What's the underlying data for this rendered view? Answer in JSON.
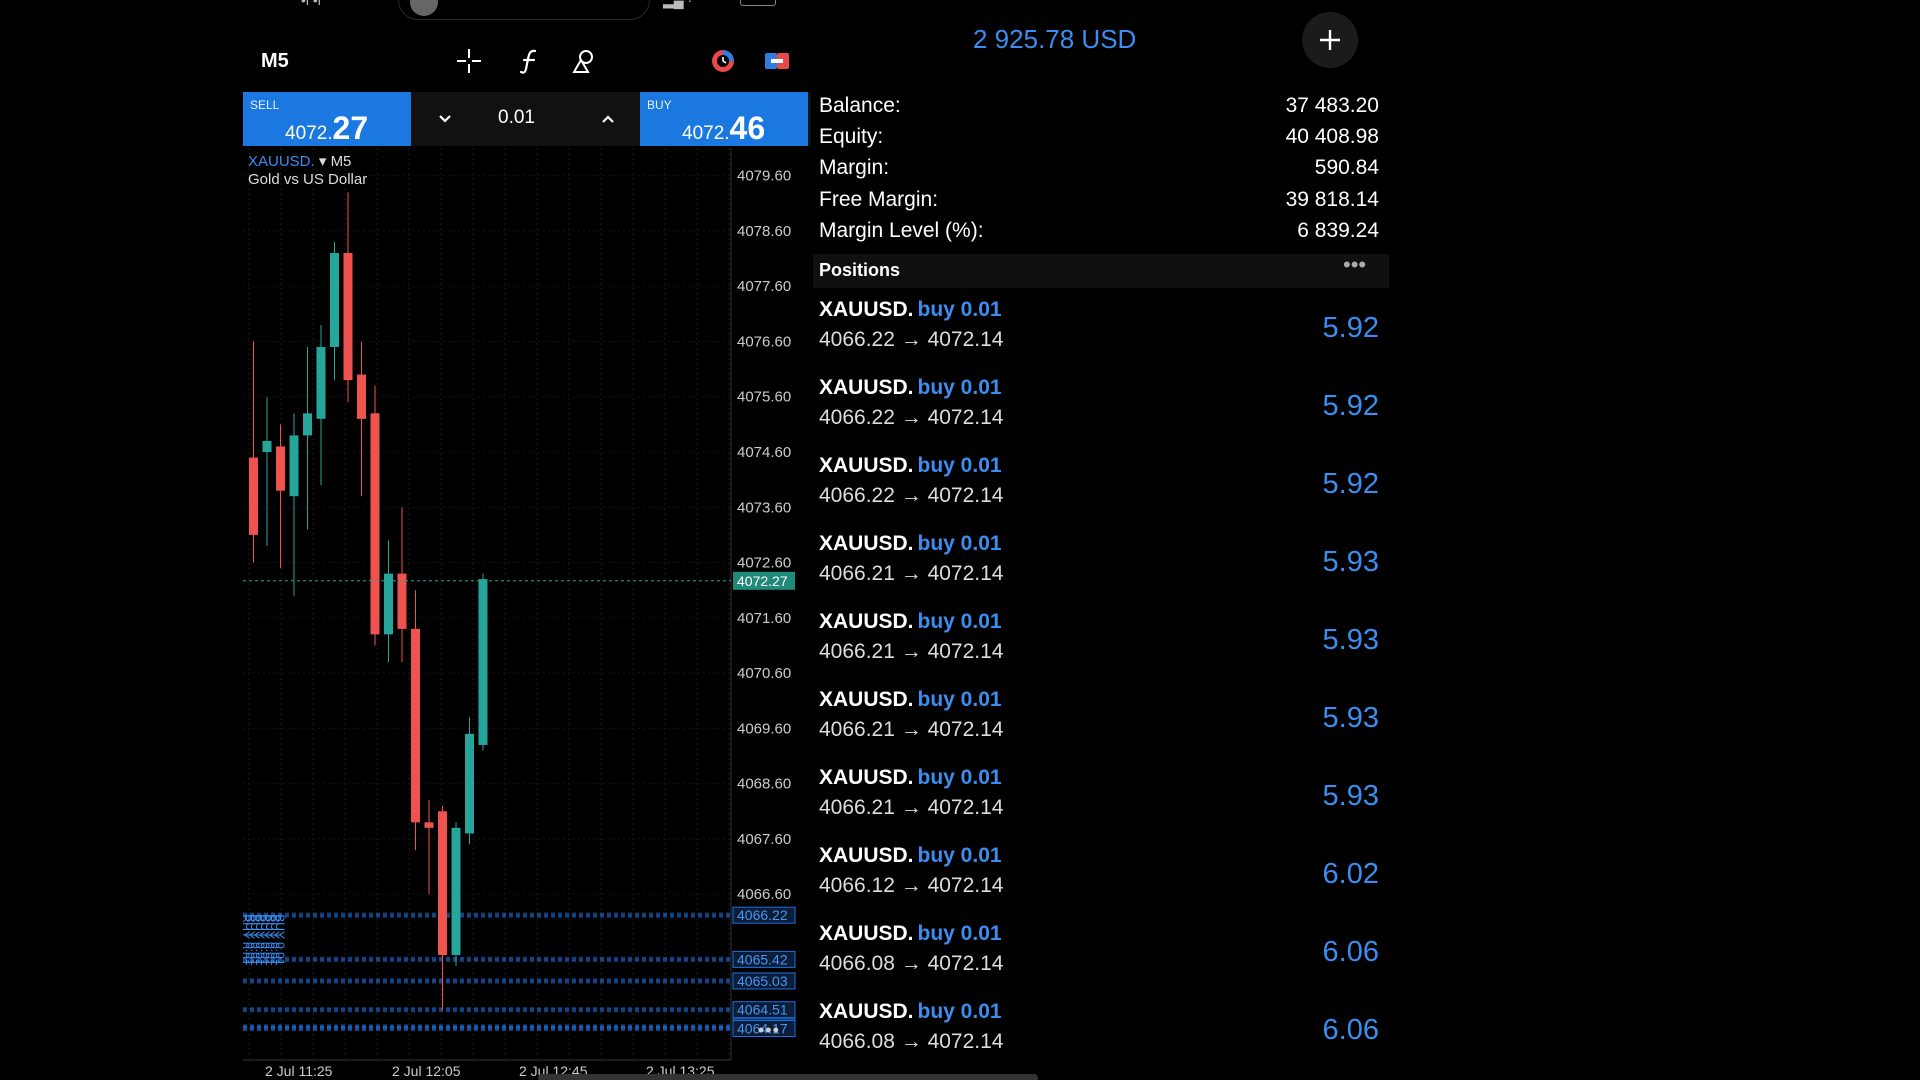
{
  "chart_toolbar": {
    "timeframe": "M5",
    "icons": [
      "crosshair-icon",
      "indicator-f-icon",
      "objects-icon",
      "oneclick-icon",
      "trade-mode-icon"
    ]
  },
  "trade": {
    "sell_label": "SELL",
    "sell_price_small": "4072.",
    "sell_price_big": "27",
    "buy_label": "BUY",
    "buy_price_small": "4072.",
    "buy_price_big": "46",
    "lot": "0.01"
  },
  "chart": {
    "symbol": "XAUUSD.",
    "timeframe": "M5",
    "description": "Gold vs US Dollar",
    "current_price_tag": "4072.27",
    "more": "•••"
  },
  "chart_data": {
    "type": "candlestick",
    "price_ticks": [
      "4079.60",
      "4078.60",
      "4077.60",
      "4076.60",
      "4075.60",
      "4074.60",
      "4073.60",
      "4072.60",
      "4071.60",
      "4070.60",
      "4069.60",
      "4068.60",
      "4067.60",
      "4066.60"
    ],
    "time_ticks": [
      "2 Jul 11:25",
      "2 Jul 12:05",
      "2 Jul 12:45",
      "2 Jul 13:25"
    ],
    "ylim": [
      4063.6,
      4080.1
    ],
    "current_price": 4072.27,
    "order_levels": [
      "4066.22",
      "4065.42",
      "4065.03",
      "4064.51",
      "4064.20",
      "4064.17"
    ],
    "order_label": "BUY 0.01",
    "candles": [
      {
        "o": 4074.5,
        "h": 4076.6,
        "l": 4072.6,
        "c": 4073.1
      },
      {
        "o": 4074.6,
        "h": 4075.6,
        "l": 4072.9,
        "c": 4074.8
      },
      {
        "o": 4074.7,
        "h": 4075.1,
        "l": 4072.5,
        "c": 4073.9
      },
      {
        "o": 4073.8,
        "h": 4075.3,
        "l": 4072.0,
        "c": 4074.9
      },
      {
        "o": 4074.9,
        "h": 4076.5,
        "l": 4073.2,
        "c": 4075.3
      },
      {
        "o": 4075.2,
        "h": 4076.9,
        "l": 4074.0,
        "c": 4076.5
      },
      {
        "o": 4076.5,
        "h": 4078.4,
        "l": 4075.9,
        "c": 4078.2
      },
      {
        "o": 4078.2,
        "h": 4079.3,
        "l": 4075.5,
        "c": 4075.9
      },
      {
        "o": 4076.0,
        "h": 4076.6,
        "l": 4073.8,
        "c": 4075.2
      },
      {
        "o": 4075.3,
        "h": 4075.8,
        "l": 4071.1,
        "c": 4071.3
      },
      {
        "o": 4071.3,
        "h": 4073.0,
        "l": 4070.8,
        "c": 4072.4
      },
      {
        "o": 4072.4,
        "h": 4073.6,
        "l": 4070.8,
        "c": 4071.4
      },
      {
        "o": 4071.4,
        "h": 4072.1,
        "l": 4067.4,
        "c": 4067.9
      },
      {
        "o": 4067.9,
        "h": 4068.3,
        "l": 4066.6,
        "c": 4067.8
      },
      {
        "o": 4068.1,
        "h": 4068.2,
        "l": 4064.5,
        "c": 4065.5
      },
      {
        "o": 4065.5,
        "h": 4067.9,
        "l": 4065.3,
        "c": 4067.8
      },
      {
        "o": 4067.7,
        "h": 4069.8,
        "l": 4067.5,
        "c": 4069.5
      },
      {
        "o": 4069.3,
        "h": 4072.4,
        "l": 4069.2,
        "c": 4072.3
      }
    ]
  },
  "account": {
    "equity_top": "2 925.78 USD",
    "rows": [
      {
        "label": "Balance:",
        "value": "37 483.20"
      },
      {
        "label": "Equity:",
        "value": "40 408.98"
      },
      {
        "label": "Margin:",
        "value": "590.84"
      },
      {
        "label": "Free Margin:",
        "value": "39 818.14"
      },
      {
        "label": "Margin Level (%):",
        "value": "6 839.24"
      }
    ]
  },
  "positions": {
    "title": "Positions",
    "more": "•••",
    "items": [
      {
        "symbol": "XAUUSD.",
        "side": "buy 0.01",
        "prices": "4066.22 → 4072.14",
        "profit": "5.92"
      },
      {
        "symbol": "XAUUSD.",
        "side": "buy 0.01",
        "prices": "4066.22 → 4072.14",
        "profit": "5.92"
      },
      {
        "symbol": "XAUUSD.",
        "side": "buy 0.01",
        "prices": "4066.22 → 4072.14",
        "profit": "5.92"
      },
      {
        "symbol": "XAUUSD.",
        "side": "buy 0.01",
        "prices": "4066.21 → 4072.14",
        "profit": "5.93"
      },
      {
        "symbol": "XAUUSD.",
        "side": "buy 0.01",
        "prices": "4066.21 → 4072.14",
        "profit": "5.93"
      },
      {
        "symbol": "XAUUSD.",
        "side": "buy 0.01",
        "prices": "4066.21 → 4072.14",
        "profit": "5.93"
      },
      {
        "symbol": "XAUUSD.",
        "side": "buy 0.01",
        "prices": "4066.21 → 4072.14",
        "profit": "5.93"
      },
      {
        "symbol": "XAUUSD.",
        "side": "buy 0.01",
        "prices": "4066.12 → 4072.14",
        "profit": "6.02"
      },
      {
        "symbol": "XAUUSD.",
        "side": "buy 0.01",
        "prices": "4066.08 → 4072.14",
        "profit": "6.06"
      },
      {
        "symbol": "XAUUSD.",
        "side": "buy 0.01",
        "prices": "4066.08 → 4072.14",
        "profit": "6.06"
      }
    ]
  },
  "colors": {
    "bull": "#26a69a",
    "bear": "#ef5350",
    "accent": "#1a78e0",
    "profit": "#3b8df0"
  }
}
